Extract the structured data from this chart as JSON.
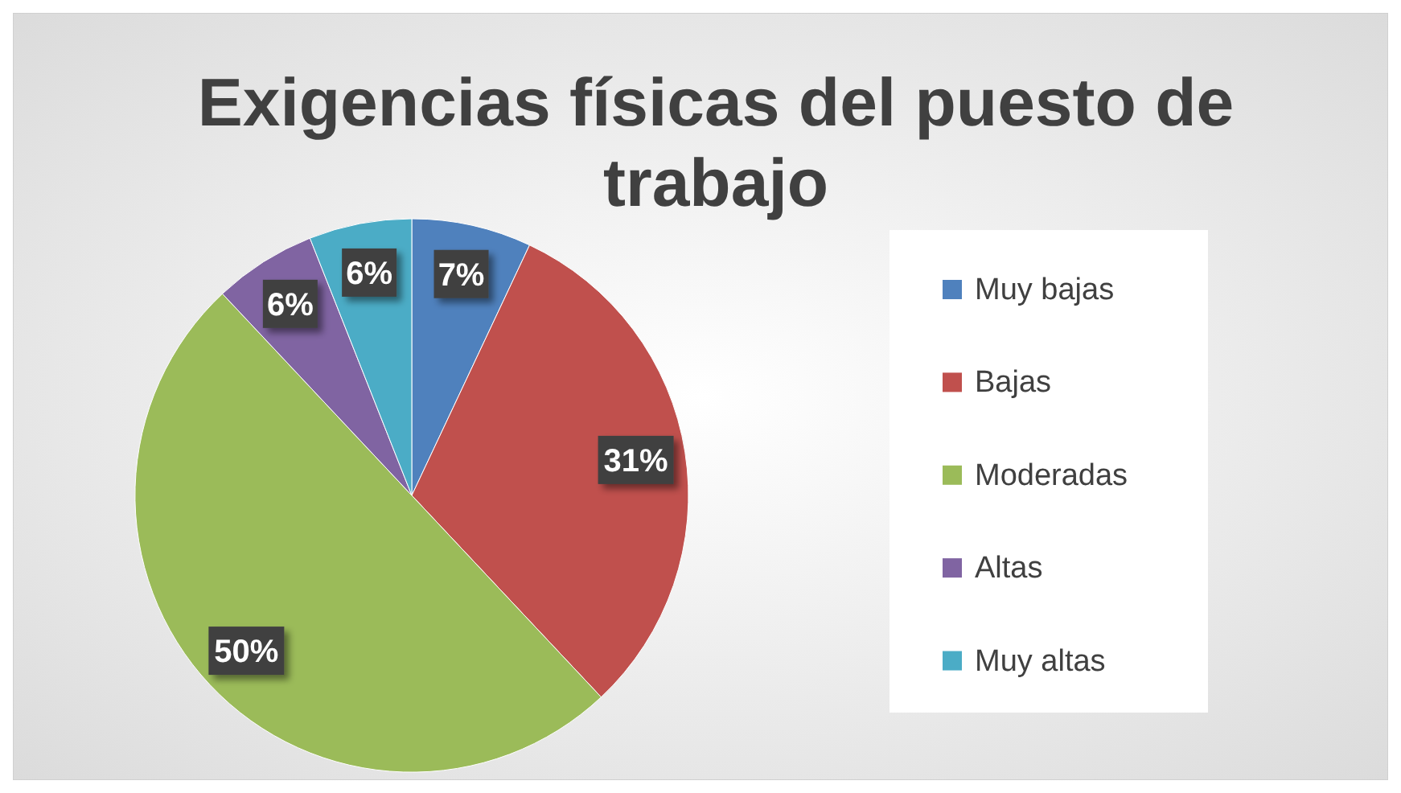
{
  "chart_data": {
    "type": "pie",
    "title": "Exigencias físicas del puesto de trabajo",
    "categories": [
      "Muy bajas",
      "Bajas",
      "Moderadas",
      "Altas",
      "Muy altas"
    ],
    "values": [
      7,
      31,
      50,
      6,
      6
    ],
    "colors": [
      "#4f81bd",
      "#c0504d",
      "#9bbb59",
      "#8064a2",
      "#4bacc6"
    ],
    "value_labels": [
      "7%",
      "31%",
      "50%",
      "6%",
      "6%"
    ],
    "legend": "right"
  }
}
